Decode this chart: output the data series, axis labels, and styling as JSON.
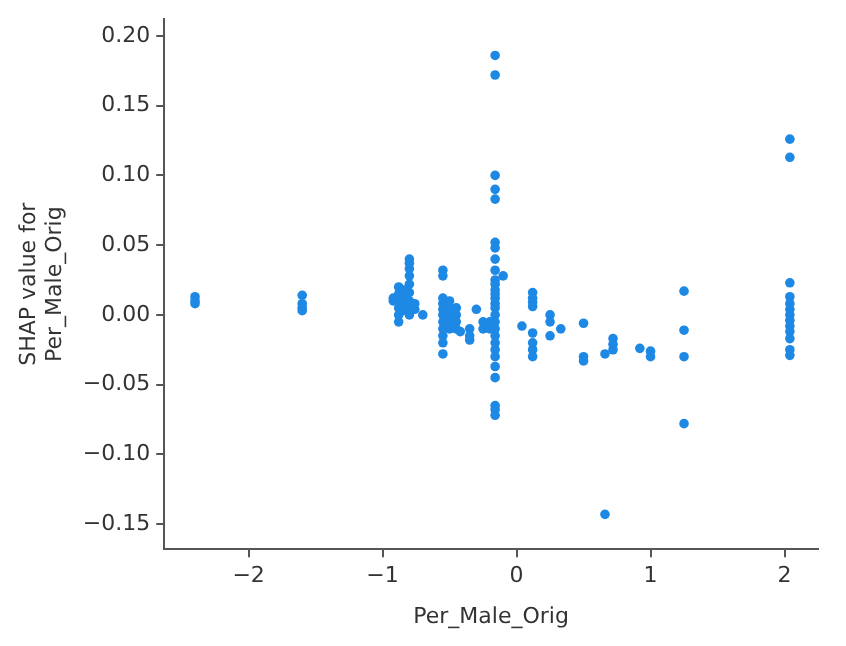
{
  "chart_data": {
    "type": "scatter",
    "xlabel": "Per_Male_Orig",
    "ylabel": "SHAP value for\nPer_Male_Orig",
    "marker": "circle",
    "grid": false,
    "legend": false,
    "xlim": [
      -2.63,
      2.25
    ],
    "ylim": [
      -0.168,
      0.212
    ],
    "xticks": [
      {
        "value": -2,
        "label": "−2"
      },
      {
        "value": -1,
        "label": "−1"
      },
      0,
      1,
      2
    ],
    "yticks": [
      {
        "value": -0.15,
        "label": "−0.15"
      },
      {
        "value": -0.1,
        "label": "−0.10"
      },
      {
        "value": -0.05,
        "label": "−0.05"
      },
      {
        "value": 0,
        "label": "0.00"
      },
      {
        "value": 0.05,
        "label": "0.05"
      },
      {
        "value": 0.1,
        "label": "0.10"
      },
      {
        "value": 0.15,
        "label": "0.15"
      },
      {
        "value": 0.2,
        "label": "0.20"
      }
    ],
    "series": [
      {
        "color": "#1e88e5",
        "x": [
          -2.4,
          -2.4,
          -2.4,
          -1.6,
          -1.6,
          -1.6,
          -1.6,
          -0.92,
          -0.92,
          -0.88,
          -0.88,
          -0.88,
          -0.88,
          -0.88,
          -0.88,
          -0.85,
          -0.85,
          -0.85,
          -0.85,
          -0.8,
          -0.8,
          -0.8,
          -0.8,
          -0.8,
          -0.8,
          -0.8,
          -0.8,
          -0.8,
          -0.76,
          -0.76,
          -0.7,
          -0.55,
          -0.55,
          -0.55,
          -0.55,
          -0.55,
          -0.55,
          -0.55,
          -0.55,
          -0.55,
          -0.55,
          -0.55,
          -0.5,
          -0.5,
          -0.5,
          -0.5,
          -0.5,
          -0.45,
          -0.45,
          -0.45,
          -0.45,
          -0.42,
          -0.35,
          -0.35,
          -0.35,
          -0.3,
          -0.25,
          -0.25,
          -0.2,
          -0.2,
          -0.16,
          -0.16,
          -0.16,
          -0.16,
          -0.16,
          -0.16,
          -0.16,
          -0.16,
          -0.16,
          -0.16,
          -0.16,
          -0.16,
          -0.16,
          -0.16,
          -0.16,
          -0.16,
          -0.16,
          -0.16,
          -0.16,
          -0.16,
          -0.16,
          -0.16,
          -0.16,
          -0.16,
          -0.16,
          -0.16,
          -0.16,
          -0.16,
          -0.1,
          0.04,
          0.12,
          0.12,
          0.12,
          0.12,
          0.12,
          0.12,
          0.12,
          0.12,
          0.25,
          0.25,
          0.25,
          0.33,
          0.5,
          0.5,
          0.5,
          0.66,
          0.66,
          0.72,
          0.72,
          0.72,
          0.92,
          1.0,
          1.0,
          1.25,
          1.25,
          1.25,
          1.25,
          2.04,
          2.04,
          2.04,
          2.04,
          2.04,
          2.04,
          2.04,
          2.04,
          2.04,
          2.04,
          2.04,
          2.04,
          2.04
        ],
        "values": [
          0.013,
          0.01,
          0.008,
          0.014,
          0.008,
          0.005,
          0.003,
          0.01,
          0.012,
          0.02,
          0.015,
          0.01,
          0.005,
          0,
          -0.005,
          0.018,
          0.012,
          0.008,
          0.003,
          0.04,
          0.037,
          0.033,
          0.028,
          0.022,
          0.016,
          0.01,
          0.005,
          0,
          0.008,
          0.004,
          0,
          0.032,
          0.028,
          0.012,
          0.008,
          0.004,
          0,
          -0.005,
          -0.01,
          -0.015,
          -0.02,
          -0.028,
          0.01,
          0.005,
          0,
          -0.005,
          -0.01,
          0.005,
          0,
          -0.005,
          -0.01,
          -0.012,
          -0.01,
          -0.015,
          -0.018,
          0.004,
          -0.005,
          -0.01,
          -0.005,
          -0.01,
          0.186,
          0.172,
          0.1,
          0.09,
          0.083,
          0.052,
          0.048,
          0.04,
          0.032,
          0.025,
          0.022,
          0.018,
          0.015,
          0.012,
          0.008,
          0.005,
          0,
          -0.005,
          -0.01,
          -0.015,
          -0.02,
          -0.025,
          -0.03,
          -0.037,
          -0.045,
          -0.065,
          -0.068,
          -0.072,
          0.028,
          -0.008,
          0.016,
          0.012,
          0.009,
          0.006,
          -0.013,
          -0.02,
          -0.025,
          -0.03,
          0,
          -0.005,
          -0.015,
          -0.01,
          -0.006,
          -0.03,
          -0.033,
          -0.028,
          -0.143,
          -0.017,
          -0.021,
          -0.025,
          -0.024,
          -0.026,
          -0.03,
          0.017,
          -0.011,
          -0.03,
          -0.078,
          0.126,
          0.113,
          0.023,
          0.013,
          0.004,
          0,
          -0.004,
          -0.008,
          -0.012,
          -0.017,
          -0.025,
          -0.029,
          0.008
        ]
      }
    ]
  }
}
